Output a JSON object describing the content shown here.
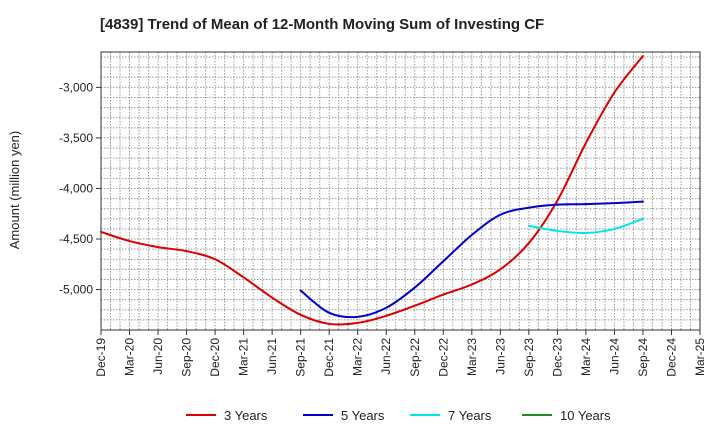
{
  "chart_data": {
    "type": "line",
    "title": "[4839]  Trend of Mean of 12-Month Moving Sum of Investing CF",
    "xlabel": "",
    "ylabel": "Amount (million yen)",
    "ylim": [
      -5400,
      -2650
    ],
    "yticks": [
      -3000,
      -3500,
      -4000,
      -4500,
      -5000
    ],
    "ytick_labels": [
      "-3,000",
      "-3,500",
      "-4,000",
      "-4,500",
      "-5,000"
    ],
    "categories": [
      "Dec-19",
      "Mar-20",
      "Jun-20",
      "Sep-20",
      "Dec-20",
      "Mar-21",
      "Jun-21",
      "Sep-21",
      "Dec-21",
      "Mar-22",
      "Jun-22",
      "Sep-22",
      "Dec-22",
      "Mar-23",
      "Jun-23",
      "Sep-23",
      "Dec-23",
      "Mar-24",
      "Jun-24",
      "Sep-24",
      "Dec-24",
      "Mar-25"
    ],
    "grid": true,
    "legend_position": "bottom",
    "series": [
      {
        "name": "3 Years",
        "color": "#dd0000",
        "values": [
          -4430,
          -4520,
          -4580,
          -4620,
          -4700,
          -4880,
          -5080,
          -5250,
          -5340,
          -5330,
          -5260,
          -5160,
          -5050,
          -4950,
          -4800,
          -4540,
          -4120,
          -3550,
          -3050,
          -2690,
          null,
          null
        ]
      },
      {
        "name": "5 Years",
        "color": "#0000cc",
        "values": [
          null,
          null,
          null,
          null,
          null,
          null,
          null,
          -5010,
          -5230,
          -5270,
          -5180,
          -4980,
          -4720,
          -4460,
          -4260,
          -4190,
          -4160,
          -4155,
          -4145,
          -4130,
          null,
          null
        ]
      },
      {
        "name": "7 Years",
        "color": "#00e5ee",
        "values": [
          null,
          null,
          null,
          null,
          null,
          null,
          null,
          null,
          null,
          null,
          null,
          null,
          null,
          null,
          null,
          -4370,
          -4420,
          -4440,
          -4400,
          -4300,
          null,
          null
        ]
      },
      {
        "name": "10 Years",
        "color": "#228b22",
        "values": [
          null,
          null,
          null,
          null,
          null,
          null,
          null,
          null,
          null,
          null,
          null,
          null,
          null,
          null,
          null,
          null,
          null,
          null,
          null,
          null,
          null,
          null
        ]
      }
    ]
  }
}
